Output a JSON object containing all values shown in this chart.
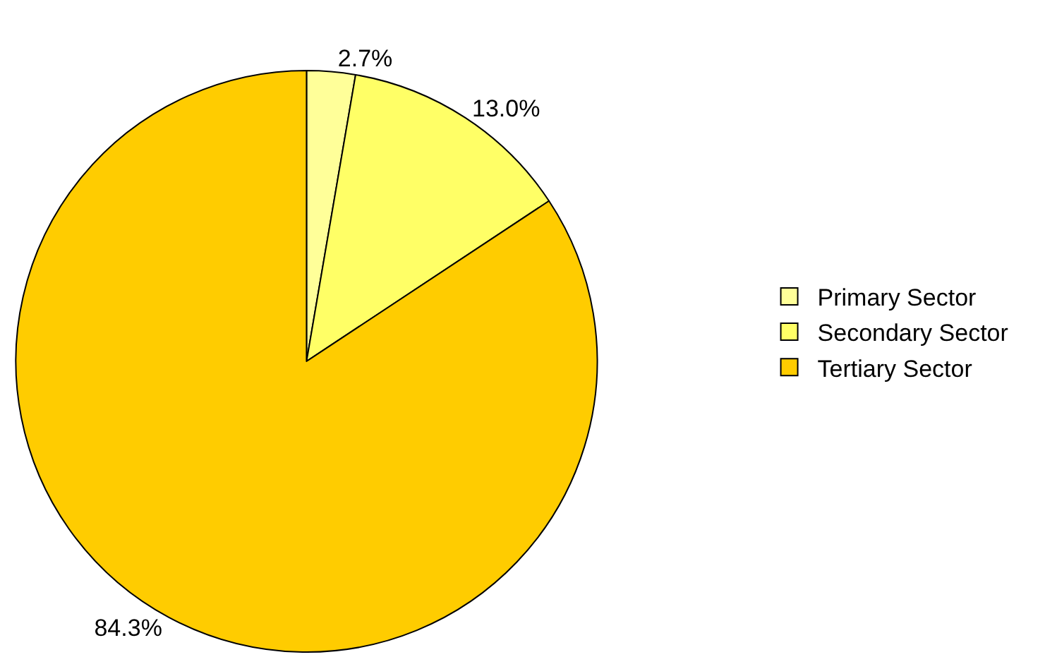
{
  "chart_data": {
    "type": "pie",
    "categories": [
      "Primary Sector",
      "Secondary Sector",
      "Tertiary Sector"
    ],
    "values": [
      2.7,
      13.0,
      84.3
    ],
    "value_labels": [
      "2.7%",
      "13.0%",
      "84.3%"
    ],
    "colors": [
      "#ffff99",
      "#ffff66",
      "#ffcc00"
    ],
    "legend": "right"
  }
}
